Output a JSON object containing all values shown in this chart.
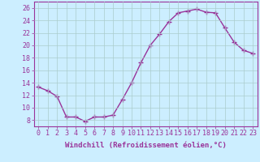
{
  "x": [
    0,
    1,
    2,
    3,
    4,
    5,
    6,
    7,
    8,
    9,
    10,
    11,
    12,
    13,
    14,
    15,
    16,
    17,
    18,
    19,
    20,
    21,
    22,
    23
  ],
  "y": [
    13.3,
    12.7,
    11.8,
    8.5,
    8.5,
    7.8,
    8.5,
    8.5,
    8.8,
    11.3,
    14.0,
    17.2,
    20.0,
    21.8,
    23.8,
    25.2,
    25.5,
    25.8,
    25.3,
    25.2,
    22.8,
    20.5,
    19.2,
    18.7
  ],
  "line_color": "#993399",
  "marker": "+",
  "marker_size": 4,
  "linewidth": 1.0,
  "markeredgewidth": 1.0,
  "xlabel": "Windchill (Refroidissement éolien,°C)",
  "ylabel": "",
  "title": "",
  "xlim": [
    -0.5,
    23.5
  ],
  "ylim": [
    7,
    27
  ],
  "yticks": [
    8,
    10,
    12,
    14,
    16,
    18,
    20,
    22,
    24,
    26
  ],
  "xticks": [
    0,
    1,
    2,
    3,
    4,
    5,
    6,
    7,
    8,
    9,
    10,
    11,
    12,
    13,
    14,
    15,
    16,
    17,
    18,
    19,
    20,
    21,
    22,
    23
  ],
  "bg_color": "#cceeff",
  "grid_color": "#aacccc",
  "tick_color": "#993399",
  "label_color": "#993399",
  "xlabel_fontsize": 6.5,
  "tick_fontsize": 6.0
}
